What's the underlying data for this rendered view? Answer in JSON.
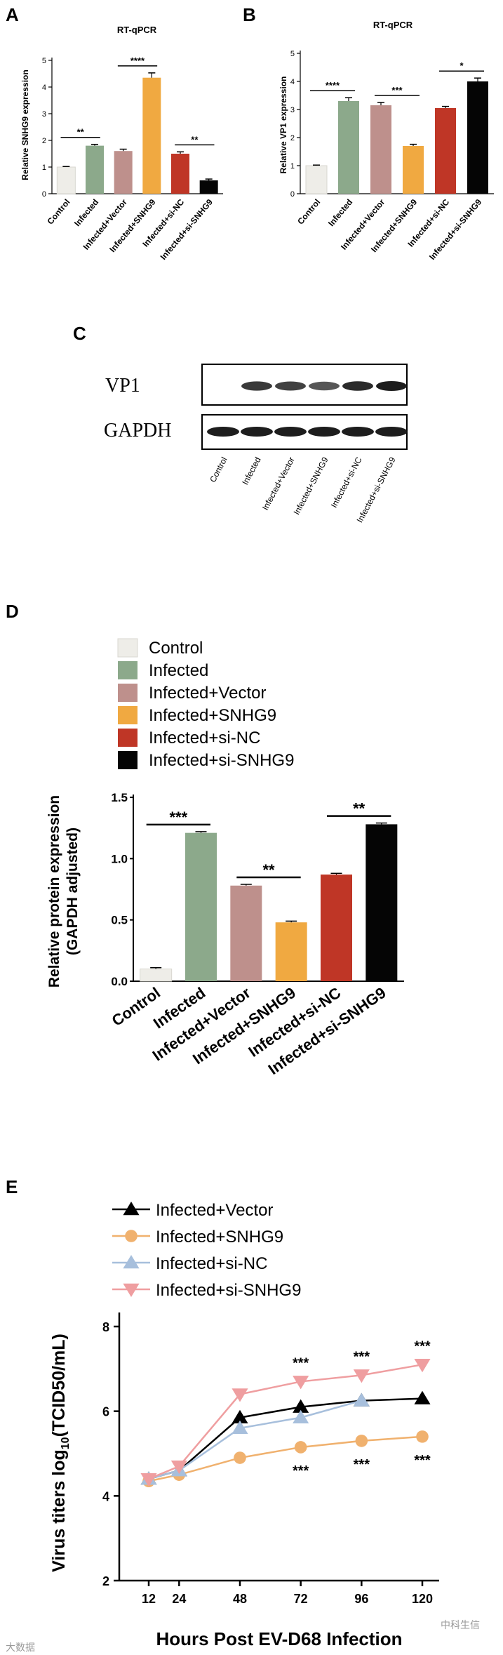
{
  "colors": {
    "Control": "#eeede8",
    "Infected": "#8ca98b",
    "Infected+Vector": "#be908c",
    "Infected+SNHG9": "#f0a941",
    "Infected+si-NC": "#bf3626",
    "Infected+si-SNHG9": "#050505",
    "line_vector": "#000000",
    "line_snhg9": "#f0b16e",
    "line_sinc": "#a7bfdc",
    "line_sisnhg9": "#ef9ea0"
  },
  "panels": {
    "A": "A",
    "B": "B",
    "C": "C",
    "D": "D",
    "E": "E"
  },
  "chart_data": [
    {
      "id": "A",
      "type": "bar",
      "title": "RT-qPCR",
      "ylabel": "Relative SNHG9 expression",
      "ylim": [
        0,
        5
      ],
      "yticks": [
        "0",
        "1",
        "2",
        "3",
        "4",
        "5"
      ],
      "categories": [
        "Control",
        "Infected",
        "Infected+Vector",
        "Infected+SNHG9",
        "Infected+si-NC",
        "Infected+si-SNHG9"
      ],
      "values": [
        1.0,
        1.8,
        1.6,
        4.35,
        1.5,
        0.5
      ],
      "errors": [
        0.02,
        0.05,
        0.07,
        0.18,
        0.07,
        0.05
      ],
      "significance": [
        {
          "from": 0,
          "to": 1,
          "label": "**"
        },
        {
          "from": 2,
          "to": 3,
          "label": "****"
        },
        {
          "from": 4,
          "to": 5,
          "label": "**"
        }
      ]
    },
    {
      "id": "B",
      "type": "bar",
      "title": "RT-qPCR",
      "ylabel": "Relative VP1 expression",
      "ylim": [
        0,
        5
      ],
      "yticks": [
        "0",
        "1",
        "2",
        "3",
        "4",
        "5"
      ],
      "categories": [
        "Control",
        "Infected",
        "Infected+Vector",
        "Infected+SNHG9",
        "Infected+si-NC",
        "Infected+si-SNHG9"
      ],
      "values": [
        1.0,
        3.3,
        3.15,
        1.7,
        3.05,
        4.0
      ],
      "errors": [
        0.02,
        0.12,
        0.1,
        0.06,
        0.06,
        0.12
      ],
      "significance": [
        {
          "from": 0,
          "to": 1,
          "label": "****"
        },
        {
          "from": 2,
          "to": 3,
          "label": "***"
        },
        {
          "from": 4,
          "to": 5,
          "label": "*"
        }
      ]
    },
    {
      "id": "C",
      "type": "blot",
      "rows": [
        "VP1",
        "GAPDH"
      ],
      "categories": [
        "Control",
        "Infected",
        "Infected+Vector",
        "Infected+SNHG9",
        "Infected+si-NC",
        "Infected+si-SNHG9"
      ],
      "vp1_intensity": [
        0,
        0.8,
        0.75,
        0.6,
        0.9,
        1.0
      ],
      "gapdh_intensity": [
        0.95,
        0.95,
        0.95,
        0.95,
        0.95,
        0.95
      ]
    },
    {
      "id": "D",
      "type": "bar",
      "ylabel_line1": "Relative protein expression",
      "ylabel_line2": "(GAPDH adjusted)",
      "ylim": [
        0,
        1.5
      ],
      "yticks": [
        "0.0",
        "0.5",
        "1.0",
        "1.5"
      ],
      "categories": [
        "Control",
        "Infected",
        "Infected+Vector",
        "Infected+SNHG9",
        "Infected+si-NC",
        "Infected+si-SNHG9"
      ],
      "legend": [
        "Control",
        "Infected",
        "Infected+Vector",
        "Infected+SNHG9",
        "Infected+si-NC",
        "Infected+si-SNHG9"
      ],
      "values": [
        0.1,
        1.21,
        0.78,
        0.48,
        0.87,
        1.28
      ],
      "errors": [
        0.01,
        0.01,
        0.01,
        0.01,
        0.01,
        0.01
      ],
      "significance": [
        {
          "from": 0,
          "to": 1,
          "label": "***"
        },
        {
          "from": 2,
          "to": 3,
          "label": "**"
        },
        {
          "from": 4,
          "to": 5,
          "label": "**"
        }
      ]
    },
    {
      "id": "E",
      "type": "line",
      "xlabel": "Hours Post EV-D68 Infection",
      "ylabel": "Virus titers log",
      "ylabel_sub": "10",
      "ylabel_tail": "(TCID50/mL)",
      "x": [
        12,
        24,
        48,
        72,
        96,
        120
      ],
      "xticks": [
        "12",
        "24",
        "48",
        "72",
        "96",
        "120"
      ],
      "ylim": [
        2,
        8
      ],
      "yticks": [
        "2",
        "4",
        "6",
        "8"
      ],
      "series": [
        {
          "name": "Infected+Vector",
          "marker": "triangle-up",
          "values": [
            4.4,
            4.6,
            5.85,
            6.1,
            6.25,
            6.3
          ]
        },
        {
          "name": "Infected+SNHG9",
          "marker": "circle",
          "values": [
            4.35,
            4.5,
            4.9,
            5.15,
            5.3,
            5.4
          ]
        },
        {
          "name": "Infected+si-NC",
          "marker": "triangle-up",
          "values": [
            4.4,
            4.6,
            5.6,
            5.85,
            6.25,
            null
          ]
        },
        {
          "name": "Infected+si-SNHG9",
          "marker": "triangle-down",
          "values": [
            4.4,
            4.7,
            6.4,
            6.7,
            6.85,
            7.1
          ]
        }
      ],
      "annotations_upper": [
        "***",
        "***",
        "***"
      ],
      "annotations_lower": [
        "***",
        "***",
        "***"
      ],
      "annotation_x": [
        72,
        96,
        120
      ]
    }
  ],
  "watermark_left": "大数据",
  "watermark_right": "中科生信"
}
